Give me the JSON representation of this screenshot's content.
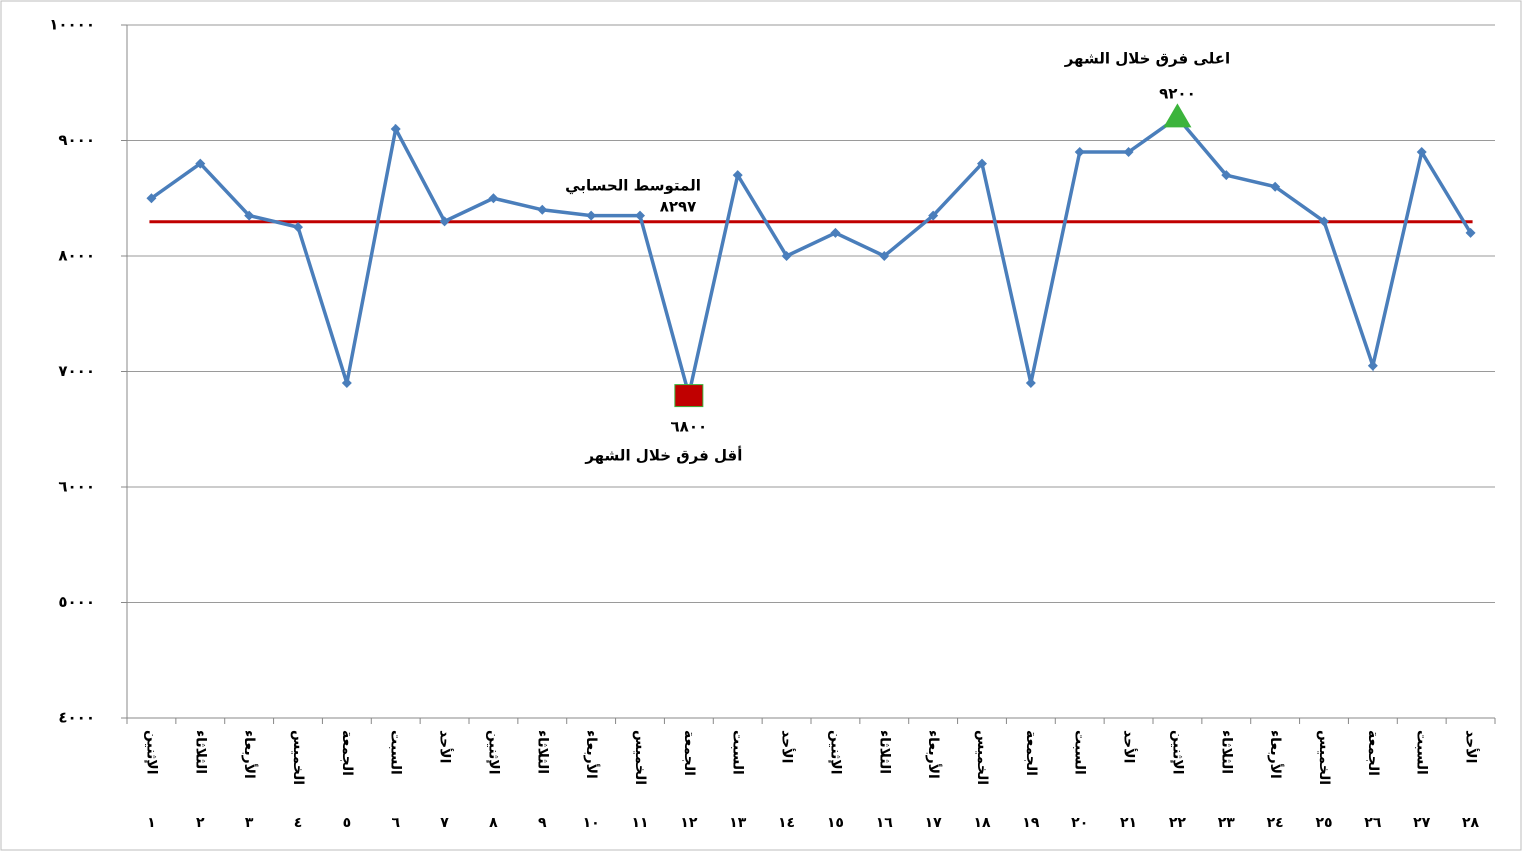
{
  "chart_data": {
    "type": "line",
    "categories": [
      "الإثنين",
      "الثلاثاء",
      "الأربعاء",
      "الخميس",
      "الجمعة",
      "السبت",
      "الأحد",
      "الإثنين",
      "الثلاثاء",
      "الأربعاء",
      "الخميس",
      "الجمعة",
      "السبت",
      "الأحد",
      "الإثنين",
      "الثلاثاء",
      "الأربعاء",
      "الخميس",
      "الجمعة",
      "السبت",
      "الأحد",
      "الإثنين",
      "الثلاثاء",
      "الأربعاء",
      "الخميس",
      "الجمعة",
      "السبت",
      "الأحد"
    ],
    "day_labels": [
      "١",
      "٢",
      "٣",
      "٤",
      "٥",
      "٦",
      "٧",
      "٨",
      "٩",
      "١٠",
      "١١",
      "١٢",
      "١٣",
      "١٤",
      "١٥",
      "١٦",
      "١٧",
      "١٨",
      "١٩",
      "٢٠",
      "٢١",
      "٢٢",
      "٢٣",
      "٢٤",
      "٢٥",
      "٢٦",
      "٢٧",
      "٢٨"
    ],
    "series": [
      {
        "color": "#4a7ebb",
        "values": [
          8500,
          8800,
          8350,
          8250,
          6900,
          9100,
          8300,
          8500,
          8400,
          8350,
          8350,
          6800,
          8700,
          8000,
          8200,
          8000,
          8350,
          8800,
          6900,
          8900,
          8900,
          9200,
          8700,
          8600,
          8300,
          7050,
          8900,
          8200
        ]
      }
    ],
    "ylim": [
      4000,
      10000
    ],
    "yticks": [
      {
        "value": 4000,
        "label": "٤٠٠٠"
      },
      {
        "value": 5000,
        "label": "٥٠٠٠"
      },
      {
        "value": 6000,
        "label": "٦٠٠٠"
      },
      {
        "value": 7000,
        "label": "٧٠٠٠"
      },
      {
        "value": 8000,
        "label": "٨٠٠٠"
      },
      {
        "value": 9000,
        "label": "٩٠٠٠"
      },
      {
        "value": 10000,
        "label": "١٠٠٠٠"
      }
    ],
    "grid": true,
    "mean": {
      "title": "المتوسط الحسابي",
      "value": 8297,
      "label": "٨٢٩٧",
      "color": "#c00000"
    },
    "max": {
      "title": "اعلى  فرق خلال الشهر",
      "value": 9200,
      "label": "٩٢٠٠",
      "color": "#3cb43c"
    },
    "min": {
      "title": "أقل  فرق خلال الشهر",
      "value": 6800,
      "label": "٦٨٠٠",
      "color": "#c00000"
    }
  }
}
